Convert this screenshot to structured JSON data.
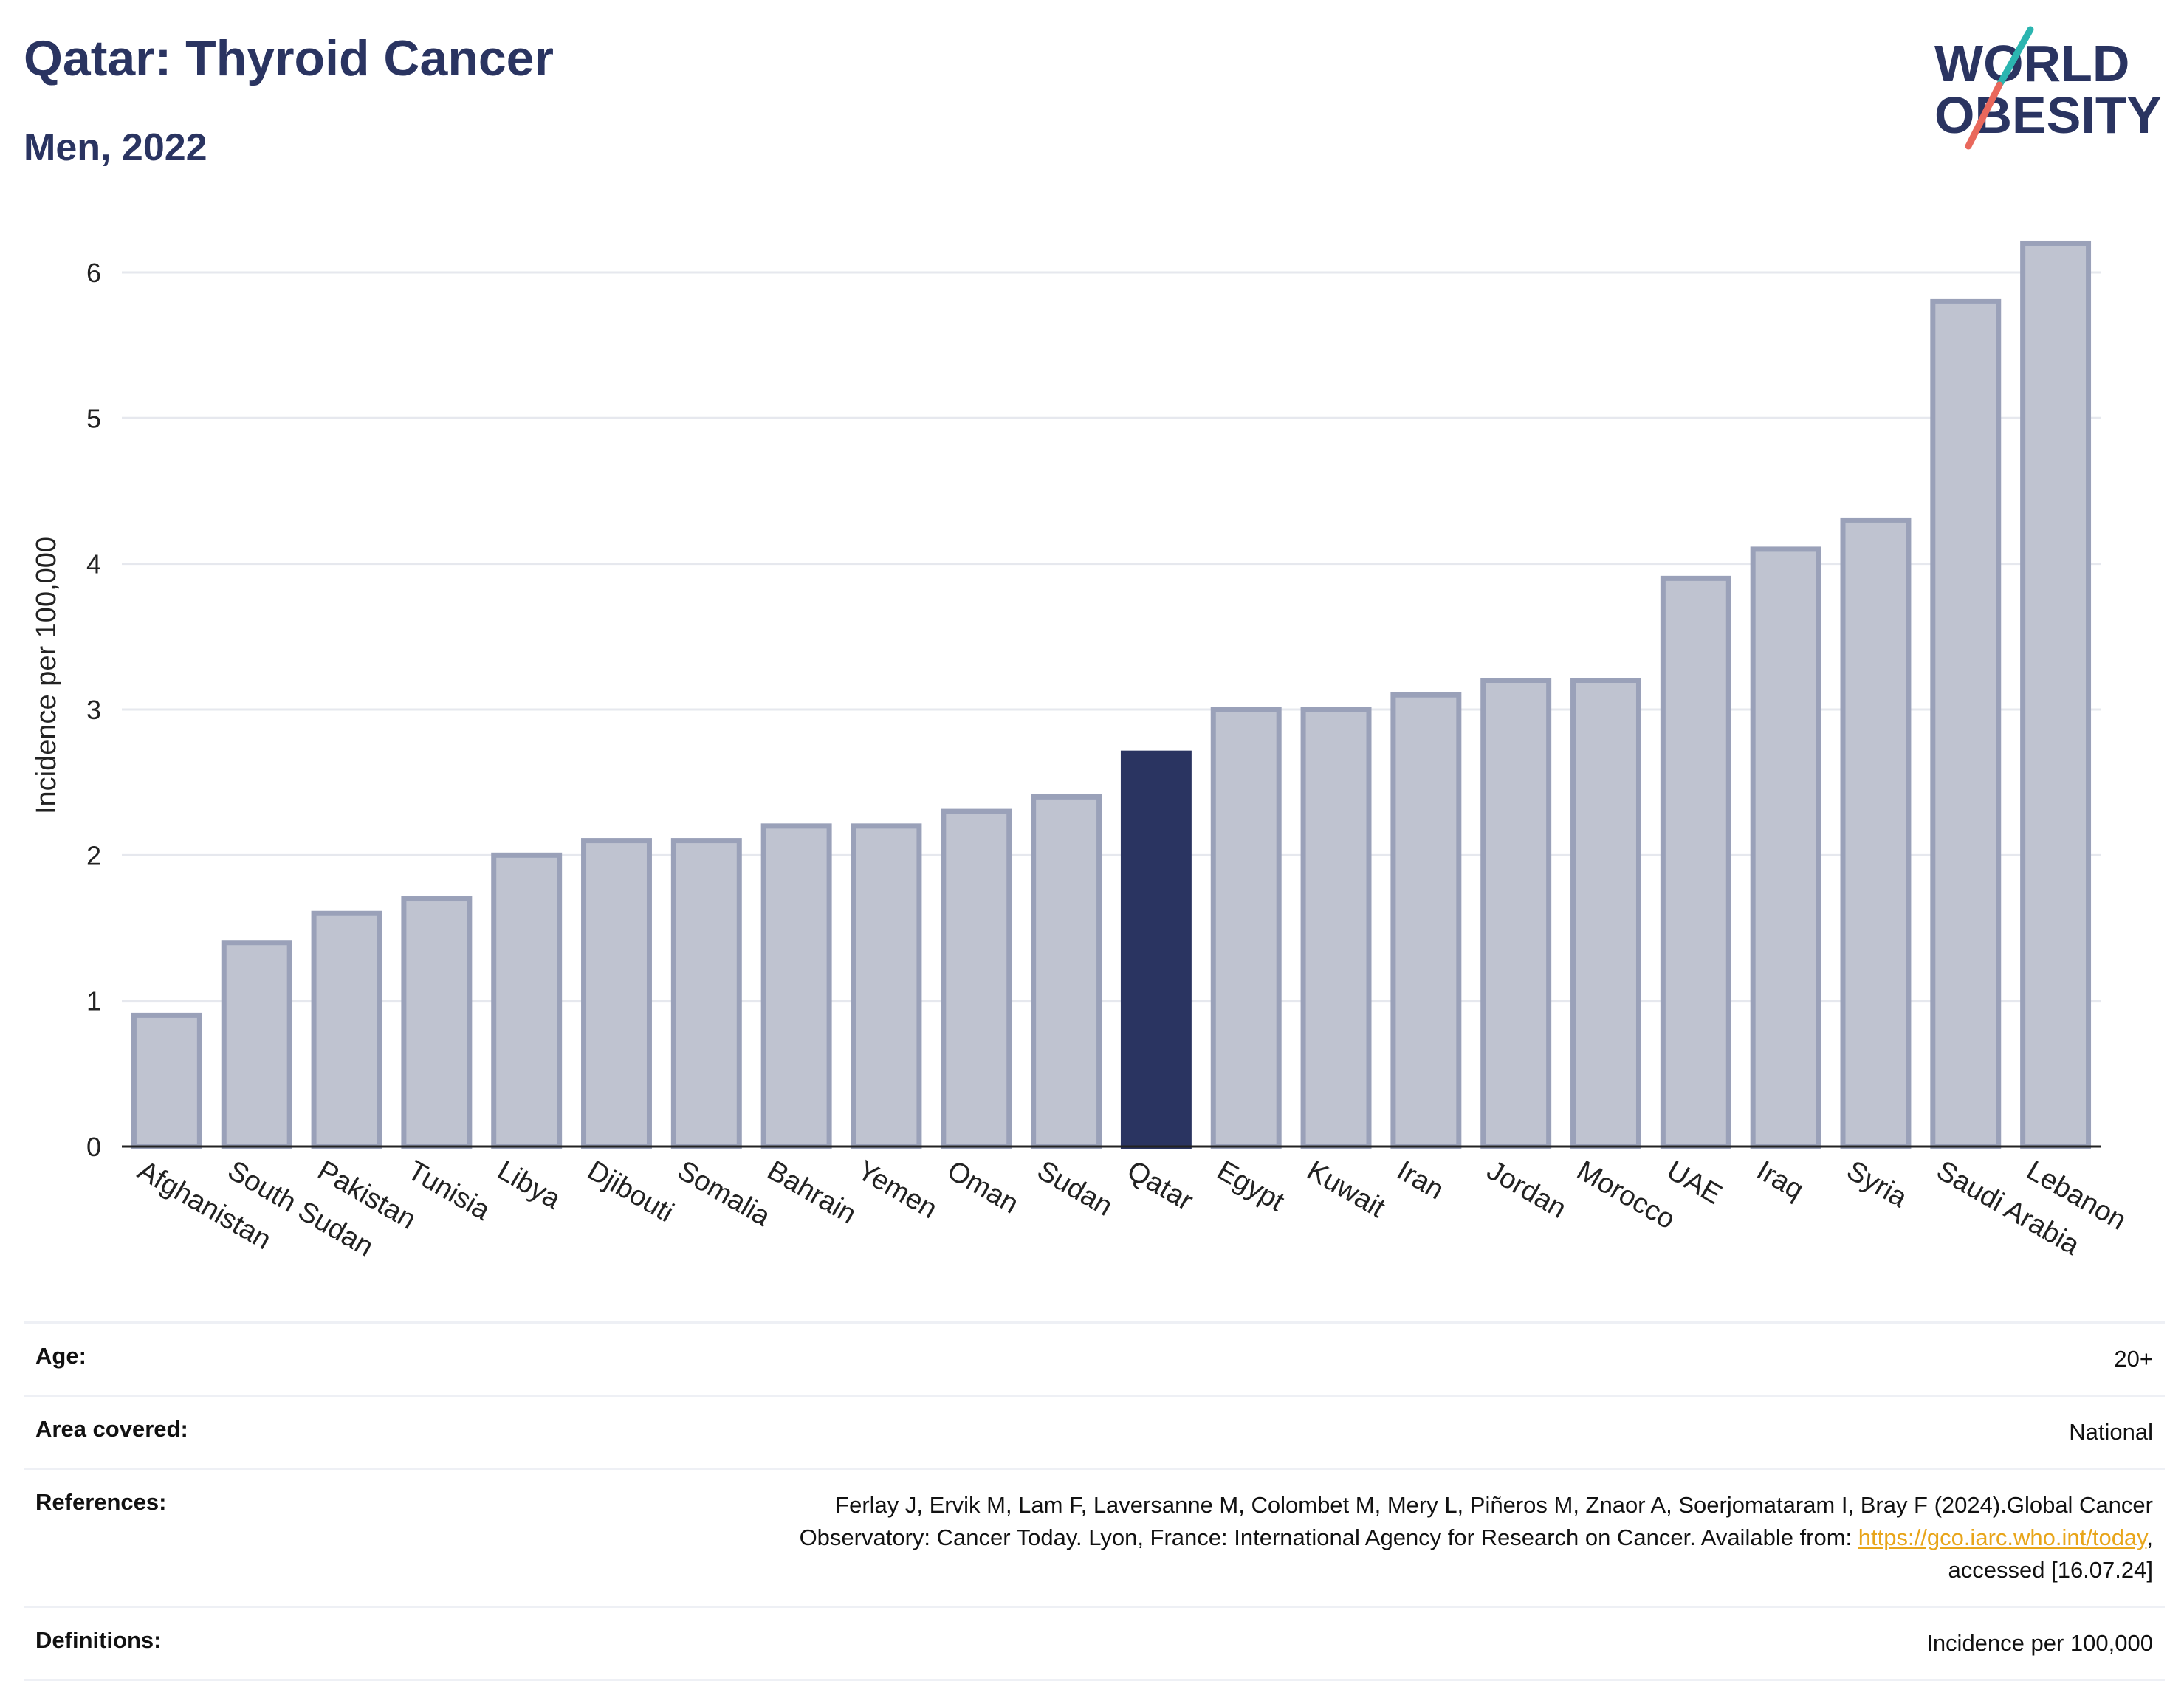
{
  "header": {
    "title": "Qatar: Thyroid Cancer",
    "subtitle": "Men, 2022"
  },
  "logo": {
    "line1": "WORLD",
    "line2": "OBESITY",
    "accent_teal": "#2bb5b0",
    "accent_coral": "#e9685c"
  },
  "colors": {
    "bar": "#bfc3d0",
    "bar_border": "#9aa1b9",
    "highlight": "#2a3461",
    "grid": "#e6e8ee",
    "text": "#2a3461"
  },
  "chart_data": {
    "type": "bar",
    "ylabel": "Incidence per 100,000",
    "xlabel": "",
    "ylim": [
      0,
      6.4
    ],
    "yticks": [
      0,
      1,
      2,
      3,
      4,
      5,
      6
    ],
    "grid": true,
    "highlight": "Qatar",
    "categories": [
      "Afghanistan",
      "South Sudan",
      "Pakistan",
      "Tunisia",
      "Libya",
      "Djibouti",
      "Somalia",
      "Bahrain",
      "Yemen",
      "Oman",
      "Sudan",
      "Qatar",
      "Egypt",
      "Kuwait",
      "Iran",
      "Jordan",
      "Morocco",
      "UAE",
      "Iraq",
      "Syria",
      "Saudi Arabia",
      "Lebanon"
    ],
    "values": [
      0.9,
      1.4,
      1.6,
      1.7,
      2.0,
      2.1,
      2.1,
      2.2,
      2.2,
      2.3,
      2.4,
      2.7,
      3.0,
      3.0,
      3.1,
      3.2,
      3.2,
      3.9,
      4.1,
      4.3,
      5.8,
      6.2
    ]
  },
  "info": {
    "age_label": "Age:",
    "age_value": "20+",
    "area_label": "Area covered:",
    "area_value": "National",
    "references_label": "References:",
    "references_text1": "Ferlay J, Ervik M, Lam F, Laversanne M, Colombet M, Mery L, Piñeros M, Znaor A, Soerjomataram I, Bray F (2024).Global Cancer",
    "references_text2": "Observatory: Cancer Today. Lyon, France: International Agency for Research on Cancer. Available from: ",
    "references_link": "https://gco.iarc.who.int/today",
    "references_text3": ",",
    "references_text4": "accessed [16.07.24]",
    "definitions_label": "Definitions:",
    "definitions_value": "Incidence per 100,000"
  }
}
